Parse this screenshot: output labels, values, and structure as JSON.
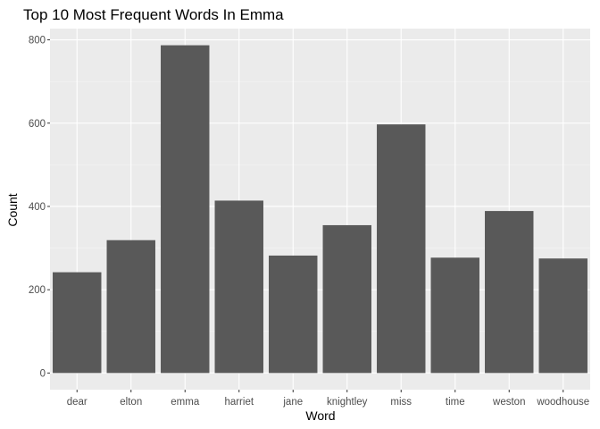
{
  "chart_data": {
    "type": "bar",
    "title": "Top 10 Most Frequent Words In Emma",
    "xlabel": "Word",
    "ylabel": "Count",
    "categories": [
      "dear",
      "elton",
      "emma",
      "harriet",
      "jane",
      "knightley",
      "miss",
      "time",
      "weston",
      "woodhouse"
    ],
    "values": [
      242,
      319,
      787,
      414,
      282,
      355,
      597,
      277,
      389,
      275
    ],
    "ylim": [
      -40,
      827
    ],
    "yticks": [
      0,
      200,
      400,
      600,
      800
    ],
    "grid": true,
    "legend": "none",
    "colors": {
      "bar": "#595959",
      "panel_background": "#ebebeb",
      "grid_major": "#ffffff",
      "tick_text": "#4d4d4d"
    }
  }
}
